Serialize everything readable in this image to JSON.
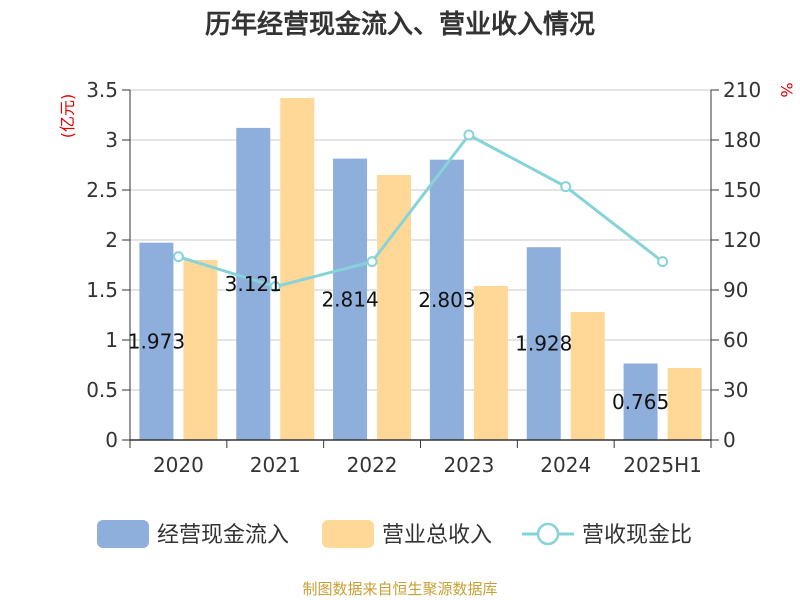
{
  "chart_data": {
    "type": "bar",
    "title": "历年经营现金流入、营业收入情况",
    "categories": [
      "2020",
      "2021",
      "2022",
      "2023",
      "2024",
      "2025H1"
    ],
    "series": [
      {
        "name": "经营现金流入",
        "kind": "bar",
        "axis": "left",
        "color": "#8eaedb",
        "values": [
          1.973,
          3.121,
          2.814,
          2.803,
          1.928,
          0.765
        ],
        "labels": [
          "1.973",
          "3.121",
          "2.814",
          "2.803",
          "1.928",
          "0.765"
        ]
      },
      {
        "name": "营业总收入",
        "kind": "bar",
        "axis": "left",
        "color": "#ffd897",
        "values": [
          1.8,
          3.42,
          2.65,
          1.54,
          1.28,
          0.72
        ]
      },
      {
        "name": "营收现金比",
        "kind": "line",
        "axis": "right",
        "color": "#86d4d8",
        "values": [
          110,
          92,
          107,
          183,
          152,
          107
        ]
      }
    ],
    "y_left": {
      "unit": "(亿元)",
      "ylim": [
        0,
        3.5
      ],
      "ticks": [
        "0",
        "0.5",
        "1",
        "1.5",
        "2",
        "2.5",
        "3",
        "3.5"
      ]
    },
    "y_right": {
      "unit": "%",
      "ylim": [
        0,
        210
      ],
      "ticks": [
        "0",
        "30",
        "60",
        "90",
        "120",
        "150",
        "180",
        "210"
      ]
    },
    "grid": true,
    "legend_position": "bottom"
  },
  "source_note": "制图数据来自恒生聚源数据库"
}
